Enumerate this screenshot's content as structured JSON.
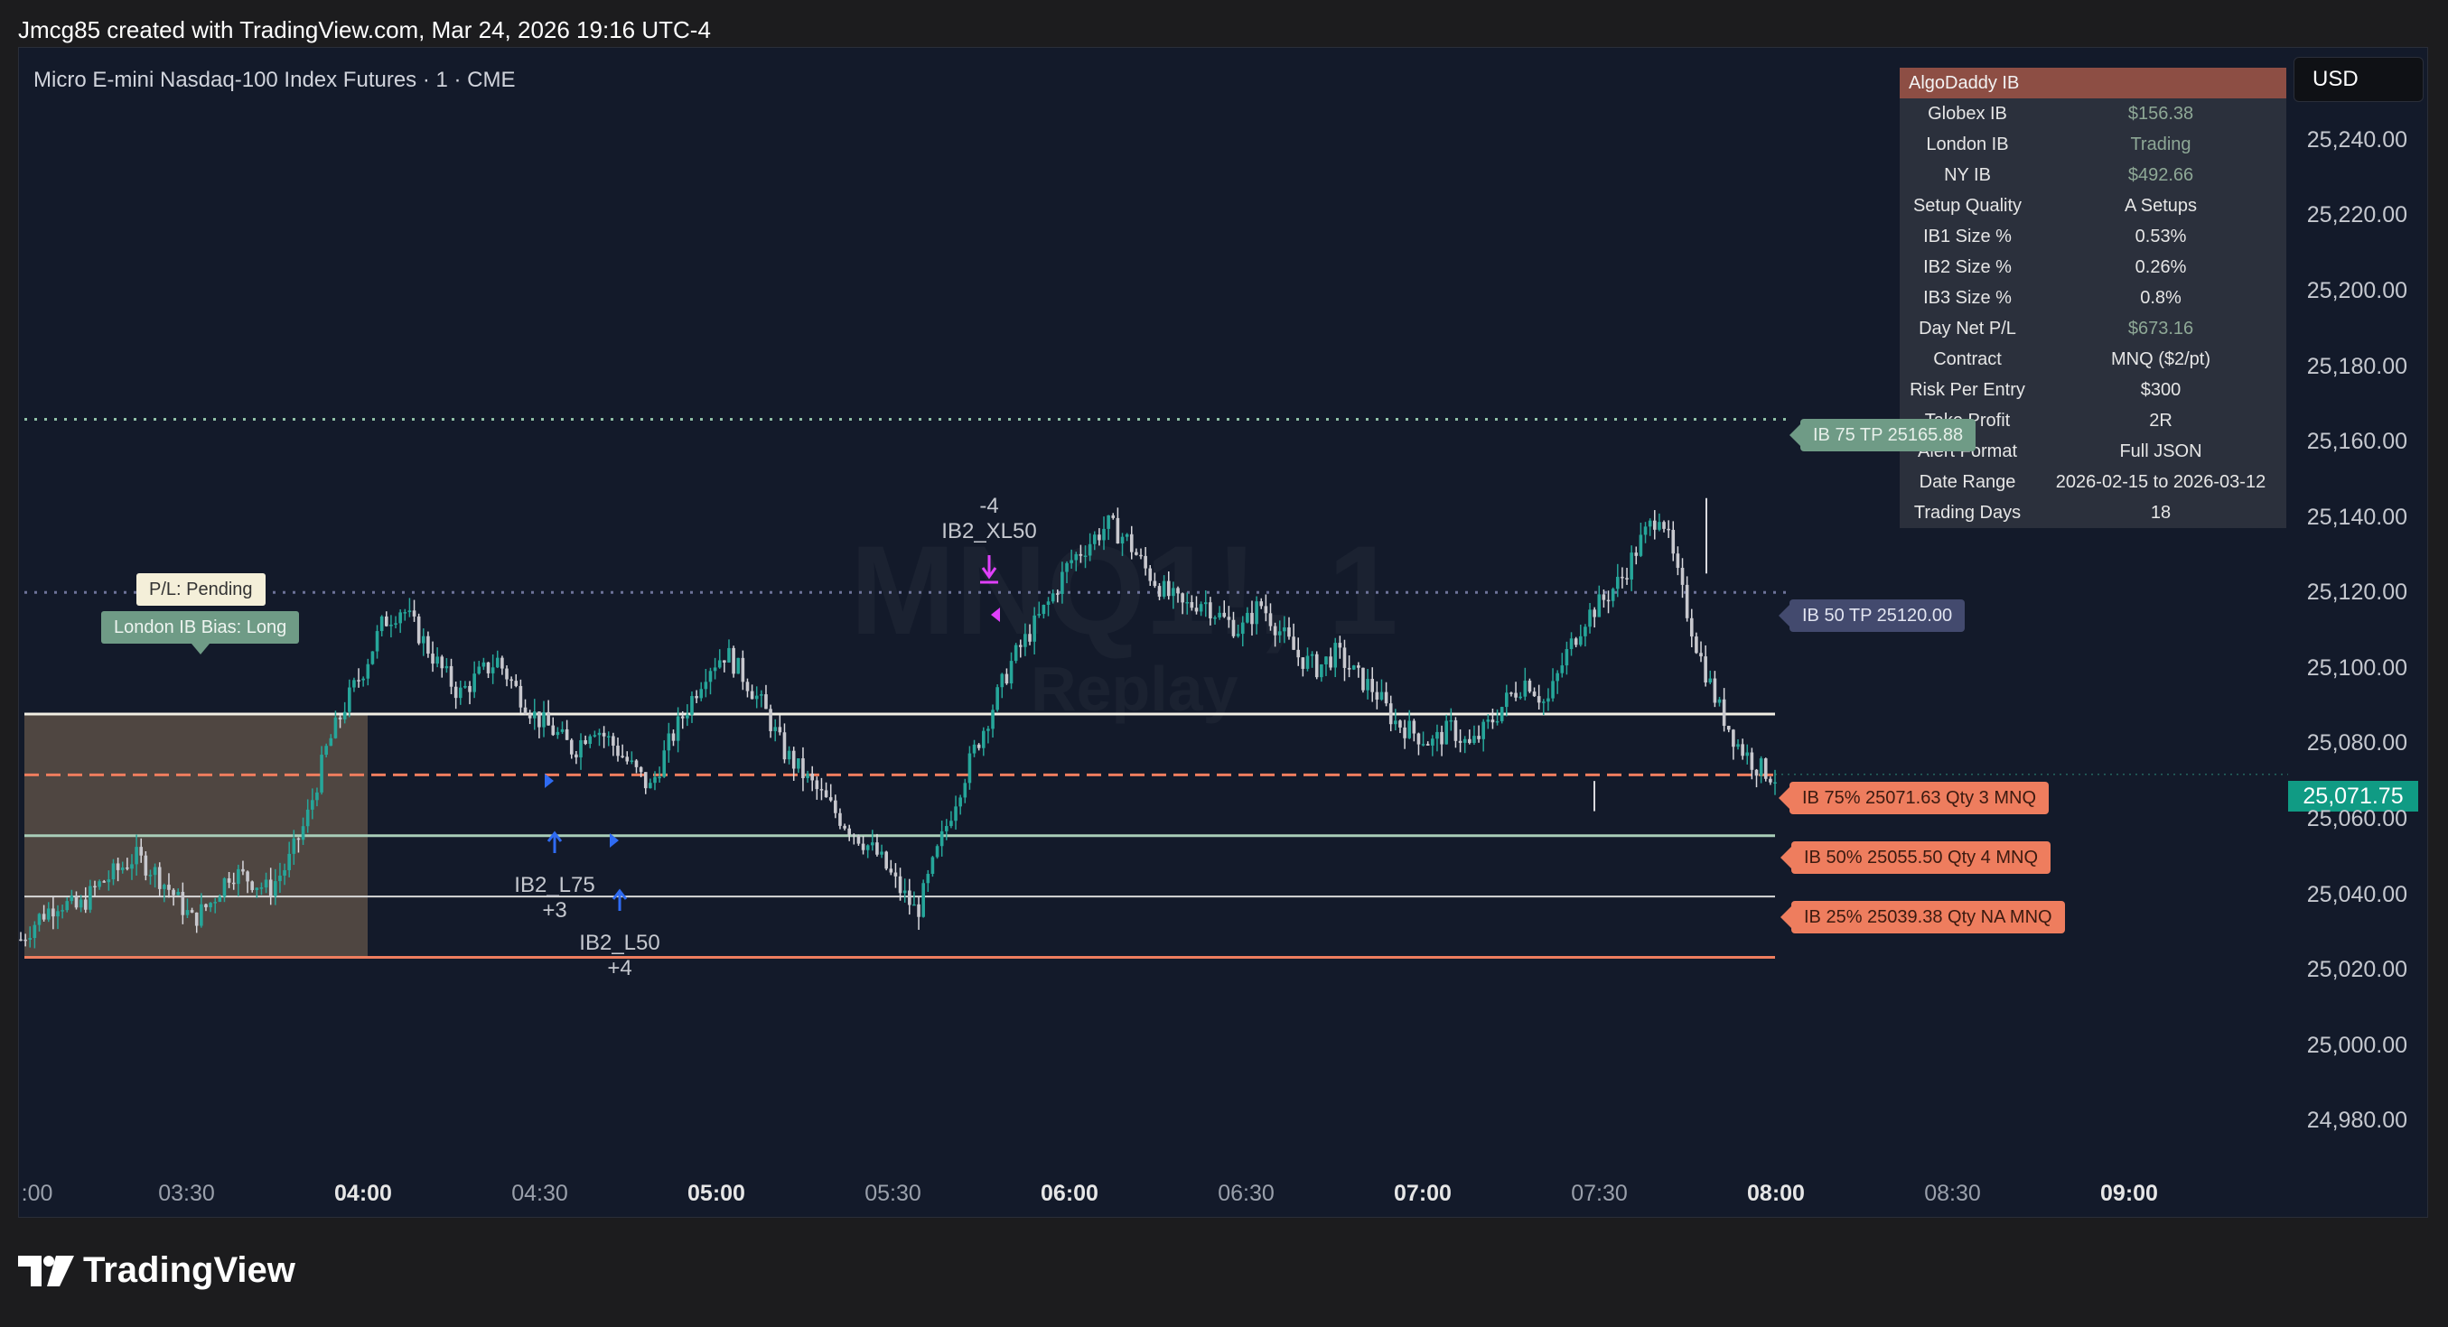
{
  "header": {
    "credit": "Jmcg85 created with TradingView.com, Mar 24, 2026 19:16 UTC-4"
  },
  "chart": {
    "instrument": "Micro E-mini Nasdaq-100 Index Futures · 1 · CME",
    "currency": "USD",
    "watermark": "MNQ1!, 1",
    "watermark_sub": "Replay",
    "current_price": "25,071.75"
  },
  "info_table": {
    "title": "AlgoDaddy IB",
    "rows": [
      {
        "label": "Globex IB",
        "value": "$156.38"
      },
      {
        "label": "London IB",
        "value": "Trading"
      },
      {
        "label": "NY IB",
        "value": "$492.66"
      },
      {
        "label": "Setup Quality",
        "value": "A Setups"
      },
      {
        "label": "IB1 Size %",
        "value": "0.53%"
      },
      {
        "label": "IB2 Size %",
        "value": "0.26%"
      },
      {
        "label": "IB3 Size %",
        "value": "0.8%"
      },
      {
        "label": "Day Net P/L",
        "value": "$673.16"
      },
      {
        "label": "Contract",
        "value": "MNQ ($2/pt)"
      },
      {
        "label": "Risk Per Entry",
        "value": "$300"
      },
      {
        "label": "Take Profit",
        "value": "2R"
      },
      {
        "label": "Alert Format",
        "value": "Full JSON"
      },
      {
        "label": "Date Range",
        "value": "2026-02-15 to 2026-03-12"
      },
      {
        "label": "Trading Days",
        "value": "18"
      }
    ]
  },
  "tags": {
    "tp75": "IB 75 TP 25165.88",
    "tp50": "IB 50 TP 25120.00",
    "ib75": "IB 75% 25071.63 Qty 3 MNQ",
    "ib50": "IB 50% 25055.50 Qty 4 MNQ",
    "ib25": "IB 25% 25039.38 Qty NA MNQ"
  },
  "annotations": {
    "pl": "P/L: Pending",
    "bias": "London IB Bias: Long",
    "short_qty": "-4",
    "short_name": "IB2_XL50",
    "long1_name": "IB2_L75",
    "long1_qty": "+3",
    "long2_name": "IB2_L50",
    "long2_qty": "+4"
  },
  "price_axis": [
    "25,240.00",
    "25,220.00",
    "25,200.00",
    "25,180.00",
    "25,160.00",
    "25,140.00",
    "25,120.00",
    "25,100.00",
    "25,080.00",
    "25,060.00",
    "25,040.00",
    "25,020.00",
    "25,000.00",
    "24,980.00"
  ],
  "time_axis": [
    {
      "label": ":00",
      "bold": false
    },
    {
      "label": "03:30",
      "bold": false
    },
    {
      "label": "04:00",
      "bold": true
    },
    {
      "label": "04:30",
      "bold": false
    },
    {
      "label": "05:00",
      "bold": true
    },
    {
      "label": "05:30",
      "bold": false
    },
    {
      "label": "06:00",
      "bold": true
    },
    {
      "label": "06:30",
      "bold": false
    },
    {
      "label": "07:00",
      "bold": true
    },
    {
      "label": "07:30",
      "bold": false
    },
    {
      "label": "08:00",
      "bold": true
    },
    {
      "label": "08:30",
      "bold": false
    },
    {
      "label": "09:00",
      "bold": true
    }
  ],
  "chart_data": {
    "type": "candlestick",
    "y_range": [
      24970,
      25250
    ],
    "levels": [
      {
        "name": "IB 75 TP",
        "price": 25165.88
      },
      {
        "name": "IB 50 TP",
        "price": 25120.0
      },
      {
        "name": "IB high",
        "price": 25087.75
      },
      {
        "name": "IB 75%",
        "price": 25071.63
      },
      {
        "name": "IB 50%",
        "price": 25055.5
      },
      {
        "name": "IB 25%",
        "price": 25039.38
      },
      {
        "name": "IB low",
        "price": 25023.25
      }
    ],
    "closes_path": [
      25028,
      25034,
      25038,
      25036,
      25042,
      25046,
      25050,
      25046,
      25040,
      25033,
      25038,
      25046,
      25044,
      25041,
      25048,
      25060,
      25078,
      25090,
      25100,
      25112,
      25116,
      25108,
      25100,
      25093,
      25098,
      25102,
      25094,
      25087,
      25083,
      25078,
      25085,
      25080,
      25074,
      25068,
      25080,
      25090,
      25100,
      25104,
      25097,
      25089,
      25078,
      25072,
      25066,
      25060,
      25055,
      25050,
      25042,
      25035,
      25050,
      25065,
      25078,
      25090,
      25102,
      25110,
      25118,
      25128,
      25133,
      25138,
      25134,
      25126,
      25120,
      25116,
      25118,
      25113,
      25110,
      25117,
      25110,
      25103,
      25100,
      25104,
      25098,
      25094,
      25086,
      25083,
      25080,
      25084,
      25079,
      25085,
      25092,
      25097,
      25090,
      25103,
      25113,
      25118,
      25124,
      25134,
      25142,
      25122,
      25104,
      25090,
      25080,
      25074,
      25071
    ]
  },
  "brand": {
    "name": "TradingView"
  }
}
